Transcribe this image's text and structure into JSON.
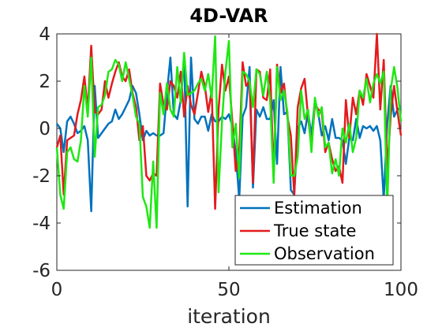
{
  "chart_data": {
    "type": "line",
    "title": "4D-VAR",
    "xlabel": "iteration",
    "ylabel": "",
    "xlim": [
      0,
      100
    ],
    "ylim": [
      -6,
      4
    ],
    "xticks": [
      0,
      50,
      100
    ],
    "yticks": [
      4,
      2,
      0,
      -2,
      -4,
      -6
    ],
    "legend_position": "bottom-right",
    "grid": false,
    "series": [
      {
        "name": "Estimation",
        "color": "#0072BD",
        "x": [
          0,
          1,
          2,
          3,
          4,
          5,
          6,
          7,
          8,
          9,
          10,
          11,
          12,
          13,
          14,
          15,
          16,
          17,
          18,
          19,
          20,
          21,
          22,
          23,
          24,
          25,
          26,
          27,
          28,
          29,
          30,
          31,
          32,
          33,
          34,
          35,
          36,
          37,
          38,
          39,
          40,
          41,
          42,
          43,
          44,
          45,
          46,
          47,
          48,
          49,
          50,
          51,
          52,
          53,
          54,
          55,
          56,
          57,
          58,
          59,
          60,
          61,
          62,
          63,
          64,
          65,
          66,
          67,
          68,
          69,
          70,
          71,
          72,
          73,
          74,
          75,
          76,
          77,
          78,
          79,
          80,
          81,
          82,
          83,
          84,
          85,
          86,
          87,
          88,
          89,
          90,
          91,
          92,
          93,
          94,
          95,
          96,
          97,
          98,
          99,
          100
        ],
        "values": [
          0.2,
          0.0,
          -1.0,
          0.3,
          0.5,
          0.2,
          -0.2,
          -0.1,
          0.1,
          -0.5,
          -3.5,
          1.8,
          -0.4,
          -0.2,
          0.0,
          0.2,
          0.3,
          0.8,
          0.4,
          0.6,
          0.9,
          1.2,
          1.8,
          1.5,
          0.6,
          -0.5,
          -0.1,
          -0.3,
          -0.2,
          -0.3,
          -0.3,
          -0.2,
          1.5,
          3.0,
          0.6,
          0.4,
          1.2,
          3.0,
          -3.3,
          3.0,
          0.4,
          0.2,
          0.5,
          0.5,
          -0.1,
          0.6,
          0.3,
          0.3,
          0.5,
          0.4,
          0.6,
          0.1,
          -1.0,
          -3.0,
          0.5,
          0.9,
          2.6,
          -2.5,
          0.8,
          0.5,
          0.9,
          0.4,
          0.4,
          1.2,
          -1.5,
          2.6,
          0.6,
          0.7,
          -2.6,
          -2.8,
          0.0,
          0.3,
          -0.2,
          0.7,
          -0.3,
          1.2,
          0.6,
          -0.3,
          0.1,
          -0.5,
          0.4,
          -0.4,
          -0.4,
          -0.5,
          -1.5,
          -0.4,
          -0.5,
          0.4,
          -0.4,
          0.1,
          0.0,
          0.1,
          -0.1,
          0.1,
          -0.5,
          -3.0,
          0.2,
          1.8,
          0.5,
          0.8,
          0.9
        ]
      },
      {
        "name": "True state",
        "color": "#E31A1C",
        "x": [
          0,
          1,
          2,
          3,
          4,
          5,
          6,
          7,
          8,
          9,
          10,
          11,
          12,
          13,
          14,
          15,
          16,
          17,
          18,
          19,
          20,
          21,
          22,
          23,
          24,
          25,
          26,
          27,
          28,
          29,
          30,
          31,
          32,
          33,
          34,
          35,
          36,
          37,
          38,
          39,
          40,
          41,
          42,
          43,
          44,
          45,
          46,
          47,
          48,
          49,
          50,
          51,
          52,
          53,
          54,
          55,
          56,
          57,
          58,
          59,
          60,
          61,
          62,
          63,
          64,
          65,
          66,
          67,
          68,
          69,
          70,
          71,
          72,
          73,
          74,
          75,
          76,
          77,
          78,
          79,
          80,
          81,
          82,
          83,
          84,
          85,
          86,
          87,
          88,
          89,
          90,
          91,
          92,
          93,
          94,
          95,
          96,
          97,
          98,
          99,
          100
        ],
        "values": [
          -0.8,
          -0.3,
          -2.8,
          -0.5,
          -0.4,
          -0.3,
          0.6,
          1.2,
          2.2,
          0.8,
          3.5,
          0.7,
          0.6,
          0.8,
          2.0,
          1.3,
          1.9,
          2.4,
          2.8,
          2.2,
          2.0,
          2.5,
          1.5,
          0.9,
          -0.5,
          0.1,
          -2.0,
          -2.2,
          -1.9,
          -2.0,
          1.9,
          1.0,
          0.8,
          2.0,
          1.8,
          1.3,
          2.4,
          0.5,
          1.8,
          1.0,
          0.6,
          1.5,
          2.4,
          1.8,
          0.7,
          1.6,
          -3.4,
          0.8,
          2.7,
          1.6,
          2.2,
          0.3,
          -1.8,
          -1.0,
          2.8,
          1.8,
          2.0,
          -2.3,
          2.5,
          2.4,
          1.3,
          1.2,
          2.5,
          -2.0,
          2.7,
          1.5,
          1.9,
          0.5,
          -0.3,
          -2.8,
          0.9,
          1.7,
          2.1,
          0.5,
          -0.8,
          1.0,
          0.8,
          0.7,
          -1.0,
          -0.6,
          -1.3,
          -1.8,
          -1.6,
          -2.3,
          1.2,
          -0.4,
          1.3,
          0.6,
          1.6,
          1.0,
          2.3,
          1.8,
          1.3,
          4.0,
          0.8,
          2.9,
          -1.8,
          0.5,
          1.8,
          0.7,
          -0.3
        ]
      },
      {
        "name": "Observation",
        "color": "#1EE814",
        "x": [
          0,
          1,
          2,
          3,
          4,
          5,
          6,
          7,
          8,
          9,
          10,
          11,
          12,
          13,
          14,
          15,
          16,
          17,
          18,
          19,
          20,
          21,
          22,
          23,
          24,
          25,
          26,
          27,
          28,
          29,
          30,
          31,
          32,
          33,
          34,
          35,
          36,
          37,
          38,
          39,
          40,
          41,
          42,
          43,
          44,
          45,
          46,
          47,
          48,
          49,
          50,
          51,
          52,
          53,
          54,
          55,
          56,
          57,
          58,
          59,
          60,
          61,
          62,
          63,
          64,
          65,
          66,
          67,
          68,
          69,
          70,
          71,
          72,
          73,
          74,
          75,
          76,
          77,
          78,
          79,
          80,
          81,
          82,
          83,
          84,
          85,
          86,
          87,
          88,
          89,
          90,
          91,
          92,
          93,
          94,
          95,
          96,
          97,
          98,
          99,
          100
        ],
        "values": [
          -0.8,
          -2.8,
          -3.4,
          -1.0,
          -0.8,
          -1.3,
          -1.4,
          -0.5,
          1.8,
          0.5,
          3.0,
          -1.2,
          0.9,
          1.0,
          1.4,
          2.4,
          2.5,
          2.9,
          2.7,
          2.0,
          2.8,
          2.1,
          1.4,
          0.5,
          0.2,
          -2.9,
          -3.3,
          -4.2,
          -1.4,
          -4.2,
          1.5,
          0.6,
          1.9,
          0.8,
          0.5,
          2.6,
          1.1,
          3.2,
          1.4,
          1.5,
          1.6,
          1.9,
          2.1,
          1.6,
          2.3,
          1.3,
          3.9,
          -2.7,
          0.3,
          2.4,
          3.7,
          -0.8,
          0.2,
          -2.1,
          2.4,
          2.3,
          2.0,
          0.9,
          2.5,
          2.3,
          1.4,
          2.4,
          1.2,
          -2.3,
          2.6,
          1.2,
          1.6,
          0.7,
          -2.0,
          -2.0,
          -1.2,
          1.6,
          0.4,
          0.8,
          -1.0,
          1.3,
          0.5,
          0.9,
          -0.8,
          -0.6,
          -1.9,
          -1.3,
          -2.0,
          0.0,
          -0.6,
          0.2,
          -1.0,
          -0.4,
          1.6,
          1.3,
          2.1,
          1.1,
          1.9,
          2.3,
          1.9,
          2.4,
          -3.4,
          1.6,
          2.6,
          1.7,
          0.3
        ]
      }
    ]
  }
}
